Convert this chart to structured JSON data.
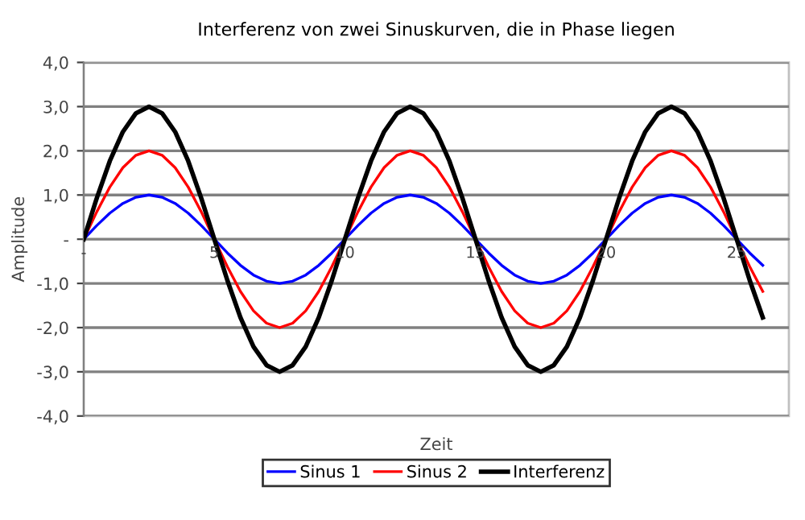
{
  "chart_data": {
    "type": "line",
    "title": "Interferenz von zwei Sinuskurven, die in Phase liegen",
    "xlabel": "Zeit",
    "ylabel": "Amplitude",
    "x": [
      0,
      0.5,
      1,
      1.5,
      2,
      2.5,
      3,
      3.5,
      4,
      4.5,
      5,
      5.5,
      6,
      6.5,
      7,
      7.5,
      8,
      8.5,
      9,
      9.5,
      10,
      10.5,
      11,
      11.5,
      12,
      12.5,
      13,
      13.5,
      14,
      14.5,
      15,
      15.5,
      16,
      16.5,
      17,
      17.5,
      18,
      18.5,
      19,
      19.5,
      20,
      20.5,
      21,
      21.5,
      22,
      22.5,
      23,
      23.5,
      24,
      24.5,
      25,
      25.5,
      26
    ],
    "series": [
      {
        "name": "Sinus 1",
        "color": "#0000ff",
        "values": [
          0,
          0.31,
          0.59,
          0.81,
          0.95,
          1,
          0.95,
          0.81,
          0.59,
          0.31,
          0,
          -0.31,
          -0.59,
          -0.81,
          -0.95,
          -1,
          -0.95,
          -0.81,
          -0.59,
          -0.31,
          0,
          0.31,
          0.59,
          0.81,
          0.95,
          1,
          0.95,
          0.81,
          0.59,
          0.31,
          0,
          -0.31,
          -0.59,
          -0.81,
          -0.95,
          -1,
          -0.95,
          -0.81,
          -0.59,
          -0.31,
          0,
          0.31,
          0.59,
          0.81,
          0.95,
          1,
          0.95,
          0.81,
          0.59,
          0.31,
          0,
          -0.31,
          -0.59
        ]
      },
      {
        "name": "Sinus 2",
        "color": "#ff0000",
        "values": [
          0,
          0.62,
          1.18,
          1.62,
          1.9,
          2,
          1.9,
          1.62,
          1.18,
          0.62,
          0,
          -0.62,
          -1.18,
          -1.62,
          -1.9,
          -2,
          -1.9,
          -1.62,
          -1.18,
          -0.62,
          0,
          0.62,
          1.18,
          1.62,
          1.9,
          2,
          1.9,
          1.62,
          1.18,
          0.62,
          0,
          -0.62,
          -1.18,
          -1.62,
          -1.9,
          -2,
          -1.9,
          -1.62,
          -1.18,
          -0.62,
          0,
          0.62,
          1.18,
          1.62,
          1.9,
          2,
          1.9,
          1.62,
          1.18,
          0.62,
          0,
          -0.62,
          -1.18
        ]
      },
      {
        "name": "Interferenz",
        "color": "#000000",
        "values": [
          0,
          0.93,
          1.77,
          2.43,
          2.85,
          3,
          2.85,
          2.43,
          1.77,
          0.93,
          0,
          -0.93,
          -1.77,
          -2.43,
          -2.85,
          -3,
          -2.85,
          -2.43,
          -1.77,
          -0.93,
          0,
          0.93,
          1.77,
          2.43,
          2.85,
          3,
          2.85,
          2.43,
          1.77,
          0.93,
          0,
          -0.93,
          -1.77,
          -2.43,
          -2.85,
          -3,
          -2.85,
          -2.43,
          -1.77,
          -0.93,
          0,
          0.93,
          1.77,
          2.43,
          2.85,
          3,
          2.85,
          2.43,
          1.77,
          0.93,
          0,
          -0.93,
          -1.77
        ]
      }
    ],
    "xlim": [
      0,
      27
    ],
    "xticks": [
      {
        "value": 0,
        "label": "-"
      },
      5,
      10,
      15,
      20,
      25
    ],
    "ylim": [
      -4,
      4
    ],
    "yticks": [
      {
        "value": 4,
        "label": "4,0"
      },
      {
        "value": 3,
        "label": "3,0"
      },
      {
        "value": 2,
        "label": "2,0"
      },
      {
        "value": 1,
        "label": "1,0"
      },
      {
        "value": 0,
        "label": "-"
      },
      {
        "value": -1,
        "label": "-1,0"
      },
      {
        "value": -2,
        "label": "-2,0"
      },
      {
        "value": -3,
        "label": "-3,0"
      },
      {
        "value": -4,
        "label": "-4,0"
      }
    ],
    "grid": "y",
    "legend": "bottom",
    "marker": "none",
    "line_style": "solid"
  }
}
